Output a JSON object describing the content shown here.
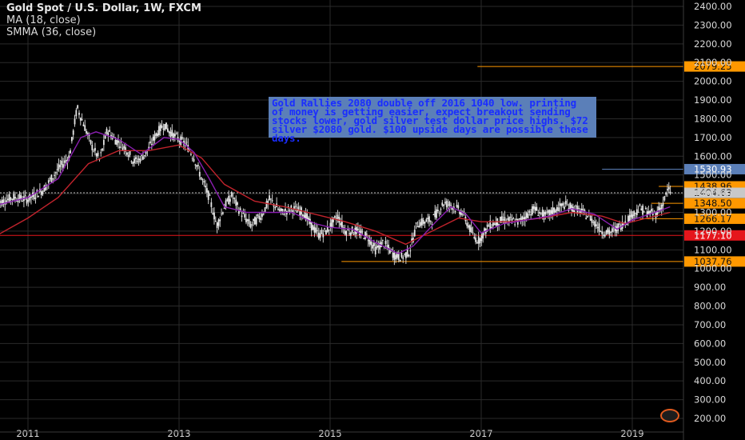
{
  "legend": {
    "symbol": "Gold Spot / U.S. Dollar, 1W, FXCM",
    "ma": "MA (18, close)",
    "smma": "SMMA (36, close)"
  },
  "note": "Gold Rallies 2080 double off 2016 1040 low. printing of money is getting easier, expect breakout sending stocks lower, gold silver test dollar price highs. $72 silver $2080 gold. $100 upside days are possible these days.",
  "colors": {
    "background": "#000000",
    "grid": "#2a2a2a",
    "candle": "#e6e6e6",
    "ma": "#8a1fb0",
    "smma": "#c0232c",
    "orange": "#ff9800",
    "blue": "#5b7fb8",
    "red_level": "#e5161c",
    "axis_text": "#d9d9d9"
  },
  "chart_data": {
    "type": "candlestick",
    "title": "Gold Spot / U.S. Dollar, 1W, FXCM",
    "x_ticks": [
      "2011",
      "2013",
      "2015",
      "2017",
      "2019"
    ],
    "y_ticks": [
      "200.00",
      "300.00",
      "400.00",
      "500.00",
      "600.00",
      "700.00",
      "800.00",
      "900.00",
      "1000.00",
      "1100.00",
      "1200.00",
      "1300.00",
      "1400.00",
      "1500.00",
      "1600.00",
      "1700.00",
      "1800.00",
      "1900.00",
      "2000.00",
      "2100.00",
      "2200.00",
      "2300.00",
      "2400.00"
    ],
    "ylim": [
      160,
      2440
    ],
    "xlim": [
      2010.6,
      2019.7
    ],
    "horizontal_levels": [
      {
        "label": "2079.25",
        "value": 2079.25,
        "color": "#ff9800",
        "from": 2016.95
      },
      {
        "label": "1530.93",
        "value": 1530.93,
        "color": "#5b7fb8",
        "from": 2018.6
      },
      {
        "label": "1438.96",
        "value": 1438.96,
        "color": "#ff9800",
        "from": 2019.35
      },
      {
        "label": "1348.50",
        "value": 1348.5,
        "color": "#ff9800",
        "from": 2019.25
      },
      {
        "label": "1266.17",
        "value": 1266.17,
        "color": "#ff9800",
        "from": 2019.1
      },
      {
        "label": "1177.10",
        "value": 1177.1,
        "color": "#e5161c",
        "from": 2010.6
      },
      {
        "label": "1037.76",
        "value": 1037.76,
        "color": "#ff9800",
        "from": 2015.15
      }
    ],
    "last_price": {
      "label": "1404.63",
      "value": 1404.63
    },
    "price_path": [
      [
        2010.6,
        1350
      ],
      [
        2010.8,
        1380
      ],
      [
        2011.0,
        1370
      ],
      [
        2011.2,
        1420
      ],
      [
        2011.4,
        1530
      ],
      [
        2011.55,
        1600
      ],
      [
        2011.65,
        1860
      ],
      [
        2011.72,
        1790
      ],
      [
        2011.85,
        1650
      ],
      [
        2011.95,
        1580
      ],
      [
        2012.05,
        1740
      ],
      [
        2012.15,
        1690
      ],
      [
        2012.3,
        1640
      ],
      [
        2012.4,
        1570
      ],
      [
        2012.5,
        1590
      ],
      [
        2012.6,
        1640
      ],
      [
        2012.7,
        1720
      ],
      [
        2012.8,
        1770
      ],
      [
        2012.9,
        1720
      ],
      [
        2013.0,
        1690
      ],
      [
        2013.1,
        1660
      ],
      [
        2013.2,
        1590
      ],
      [
        2013.3,
        1480
      ],
      [
        2013.4,
        1380
      ],
      [
        2013.5,
        1230
      ],
      [
        2013.6,
        1330
      ],
      [
        2013.7,
        1390
      ],
      [
        2013.8,
        1310
      ],
      [
        2013.95,
        1230
      ],
      [
        2014.1,
        1290
      ],
      [
        2014.2,
        1370
      ],
      [
        2014.35,
        1300
      ],
      [
        2014.5,
        1320
      ],
      [
        2014.65,
        1300
      ],
      [
        2014.75,
        1230
      ],
      [
        2014.85,
        1180
      ],
      [
        2014.95,
        1200
      ],
      [
        2015.1,
        1280
      ],
      [
        2015.2,
        1200
      ],
      [
        2015.35,
        1200
      ],
      [
        2015.5,
        1170
      ],
      [
        2015.6,
        1100
      ],
      [
        2015.7,
        1140
      ],
      [
        2015.85,
        1070
      ],
      [
        2015.95,
        1060
      ],
      [
        2016.05,
        1090
      ],
      [
        2016.15,
        1240
      ],
      [
        2016.35,
        1260
      ],
      [
        2016.5,
        1350
      ],
      [
        2016.6,
        1340
      ],
      [
        2016.75,
        1300
      ],
      [
        2016.9,
        1170
      ],
      [
        2016.97,
        1150
      ],
      [
        2017.1,
        1230
      ],
      [
        2017.3,
        1260
      ],
      [
        2017.5,
        1250
      ],
      [
        2017.7,
        1320
      ],
      [
        2017.85,
        1280
      ],
      [
        2018.0,
        1320
      ],
      [
        2018.1,
        1340
      ],
      [
        2018.3,
        1310
      ],
      [
        2018.45,
        1270
      ],
      [
        2018.6,
        1200
      ],
      [
        2018.7,
        1190
      ],
      [
        2018.85,
        1230
      ],
      [
        2019.0,
        1290
      ],
      [
        2019.1,
        1320
      ],
      [
        2019.2,
        1300
      ],
      [
        2019.3,
        1290
      ],
      [
        2019.4,
        1340
      ],
      [
        2019.47,
        1420
      ],
      [
        2019.52,
        1404
      ]
    ],
    "ma_path": [
      [
        2010.6,
        1340
      ],
      [
        2011.0,
        1380
      ],
      [
        2011.4,
        1480
      ],
      [
        2011.7,
        1700
      ],
      [
        2011.9,
        1730
      ],
      [
        2012.2,
        1690
      ],
      [
        2012.5,
        1610
      ],
      [
        2012.8,
        1700
      ],
      [
        2013.0,
        1690
      ],
      [
        2013.2,
        1620
      ],
      [
        2013.4,
        1480
      ],
      [
        2013.6,
        1330
      ],
      [
        2013.9,
        1300
      ],
      [
        2014.2,
        1300
      ],
      [
        2014.5,
        1300
      ],
      [
        2014.8,
        1240
      ],
      [
        2015.0,
        1220
      ],
      [
        2015.3,
        1210
      ],
      [
        2015.6,
        1140
      ],
      [
        2015.9,
        1080
      ],
      [
        2016.1,
        1120
      ],
      [
        2016.4,
        1250
      ],
      [
        2016.6,
        1330
      ],
      [
        2016.8,
        1290
      ],
      [
        2017.0,
        1190
      ],
      [
        2017.3,
        1240
      ],
      [
        2017.6,
        1260
      ],
      [
        2017.9,
        1280
      ],
      [
        2018.2,
        1320
      ],
      [
        2018.5,
        1290
      ],
      [
        2018.8,
        1210
      ],
      [
        2019.0,
        1260
      ],
      [
        2019.3,
        1300
      ],
      [
        2019.5,
        1330
      ]
    ],
    "smma_path": [
      [
        2010.6,
        1180
      ],
      [
        2011.0,
        1270
      ],
      [
        2011.4,
        1380
      ],
      [
        2011.8,
        1560
      ],
      [
        2012.2,
        1630
      ],
      [
        2012.6,
        1630
      ],
      [
        2013.0,
        1660
      ],
      [
        2013.3,
        1590
      ],
      [
        2013.6,
        1450
      ],
      [
        2014.0,
        1360
      ],
      [
        2014.4,
        1330
      ],
      [
        2014.8,
        1290
      ],
      [
        2015.2,
        1250
      ],
      [
        2015.6,
        1200
      ],
      [
        2016.0,
        1130
      ],
      [
        2016.3,
        1190
      ],
      [
        2016.7,
        1270
      ],
      [
        2017.0,
        1250
      ],
      [
        2017.4,
        1250
      ],
      [
        2017.8,
        1270
      ],
      [
        2018.2,
        1300
      ],
      [
        2018.6,
        1280
      ],
      [
        2018.9,
        1240
      ],
      [
        2019.2,
        1270
      ],
      [
        2019.5,
        1300
      ]
    ]
  }
}
